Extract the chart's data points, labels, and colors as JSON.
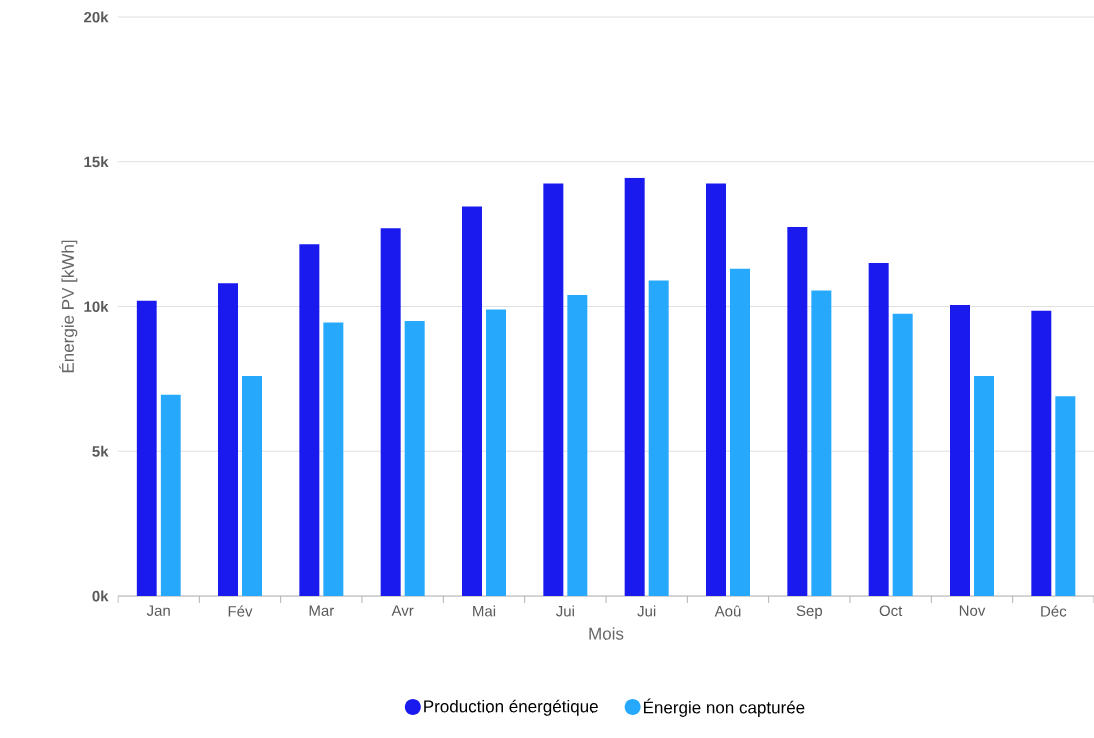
{
  "chart_data": {
    "type": "bar",
    "xlabel": "Mois",
    "ylabel": "Énergie PV [kWh]",
    "categories": [
      "Jan",
      "Fév",
      "Mar",
      "Avr",
      "Mai",
      "Jui",
      "Jui",
      "Aoû",
      "Sep",
      "Oct",
      "Nov",
      "Déc"
    ],
    "series": [
      {
        "name": "Production énergétique",
        "color": "#1a1aef",
        "values": [
          10200,
          10800,
          12150,
          12700,
          13450,
          14250,
          14450,
          14250,
          12750,
          11500,
          10050,
          9850
        ]
      },
      {
        "name": "Énergie non capturée",
        "color": "#26a9fc",
        "values": [
          6950,
          7600,
          9450,
          9500,
          9900,
          10400,
          10900,
          11300,
          10550,
          9750,
          7600,
          6900
        ]
      }
    ],
    "ylim": [
      0,
      20000
    ],
    "yticks": [
      {
        "value": 0,
        "label": "0k"
      },
      {
        "value": 5000,
        "label": "5k"
      },
      {
        "value": 10000,
        "label": "10k"
      },
      {
        "value": 15000,
        "label": "15k"
      },
      {
        "value": 20000,
        "label": "20k"
      }
    ],
    "grid": "y",
    "legend": "bottom"
  }
}
